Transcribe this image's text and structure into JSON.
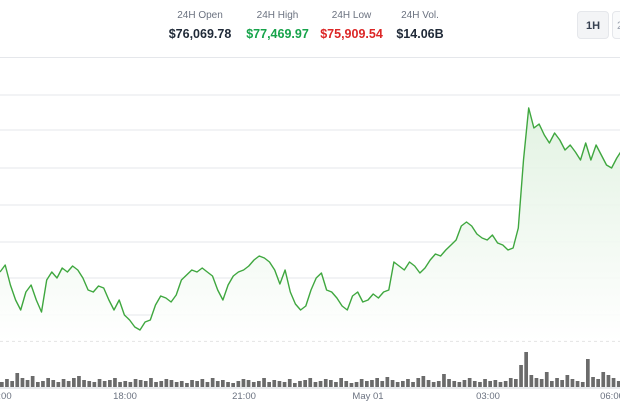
{
  "stats": [
    {
      "label": "24H Open",
      "value": "$76,069.78",
      "tone": "neutral"
    },
    {
      "label": "24H High",
      "value": "$77,469.97",
      "tone": "up"
    },
    {
      "label": "24H Low",
      "value": "$75,909.54",
      "tone": "down"
    },
    {
      "label": "24H Vol.",
      "value": "$14.06B",
      "tone": "neutral"
    }
  ],
  "timeframe": {
    "selected": "1H",
    "next": "2"
  },
  "colors": {
    "line": "#3fa73f",
    "area": "#e7f5e7",
    "volume": "#6b6b6b",
    "grid": "#e5e7eb"
  },
  "chart_data": {
    "type": "line",
    "x_ticks": [
      ":00",
      "18:00",
      "21:00",
      "May 01",
      "03:00",
      "06:00"
    ],
    "series": [
      {
        "values": [
          272,
          265,
          285,
          300,
          310,
          292,
          285,
          300,
          312,
          280,
          272,
          278,
          268,
          272,
          266,
          270,
          278,
          290,
          292,
          286,
          288,
          300,
          310,
          300,
          315,
          320,
          327,
          330,
          322,
          320,
          305,
          296,
          298,
          302,
          295,
          280,
          275,
          270,
          272,
          268,
          272,
          276,
          290,
          300,
          285,
          276,
          272,
          270,
          266,
          260,
          256,
          258,
          262,
          270,
          284,
          270,
          292,
          304,
          310,
          306,
          290,
          278,
          273,
          290,
          292,
          298,
          306,
          310,
          296,
          292,
          302,
          300,
          294,
          298,
          292,
          290,
          262,
          266,
          270,
          262,
          266,
          273,
          268,
          260,
          254,
          256,
          250,
          245,
          240,
          226,
          222,
          226,
          234,
          238,
          240,
          235,
          243,
          245,
          250,
          248,
          228,
          160,
          108,
          128,
          124,
          135,
          143,
          133,
          140,
          150,
          145,
          152,
          160,
          143,
          160,
          145,
          155,
          165,
          168,
          158,
          150
        ]
      }
    ],
    "volume": [
      5,
      8,
      6,
      14,
      9,
      7,
      11,
      5,
      6,
      9,
      7,
      5,
      8,
      6,
      9,
      11,
      7,
      6,
      5,
      8,
      6,
      7,
      9,
      5,
      6,
      5,
      8,
      7,
      6,
      9,
      5,
      6,
      8,
      7,
      5,
      6,
      4,
      7,
      6,
      8,
      5,
      9,
      6,
      7,
      5,
      4,
      6,
      8,
      7,
      5,
      6,
      9,
      5,
      7,
      6,
      5,
      8,
      4,
      6,
      7,
      9,
      5,
      6,
      8,
      7,
      5,
      9,
      6,
      4,
      5,
      8,
      6,
      7,
      9,
      6,
      10,
      7,
      5,
      6,
      8,
      5,
      9,
      11,
      7,
      5,
      6,
      13,
      8,
      6,
      5,
      7,
      9,
      6,
      5,
      8,
      6,
      7,
      5,
      6,
      9,
      8,
      22,
      35,
      12,
      9,
      8,
      15,
      6,
      9,
      7,
      12,
      8,
      6,
      5,
      28,
      10,
      8,
      15,
      12,
      9,
      6
    ]
  }
}
